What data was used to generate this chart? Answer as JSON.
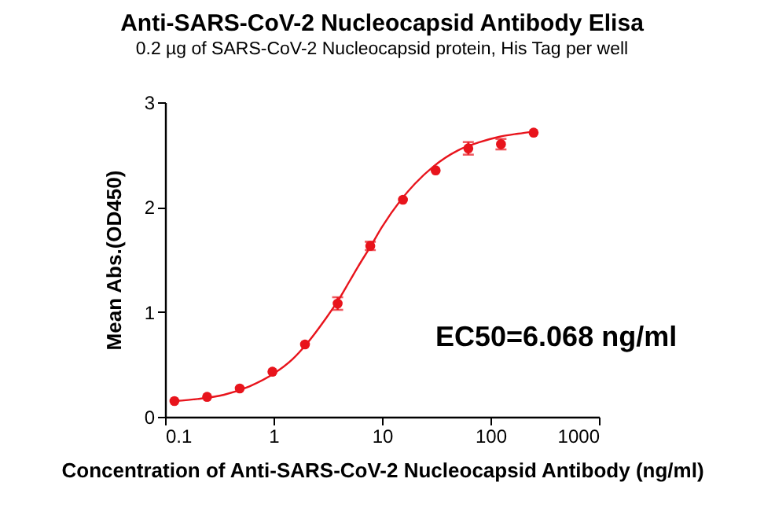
{
  "chart_data": {
    "type": "scatter",
    "title": "Anti-SARS-CoV-2 Nucleocapsid Antibody Elisa",
    "subtitle": "0.2 µg of SARS-CoV-2 Nucleocapsid protein, His Tag per well",
    "xlabel": "Concentration of Anti-SARS-CoV-2 Nucleocapsid Antibody (ng/ml)",
    "ylabel": "Mean Abs.(OD450)",
    "annotations": [
      "EC50=6.068 ng/ml"
    ],
    "log": "x",
    "xlim": [
      0.1,
      1000
    ],
    "xticks": [
      0.1,
      1,
      10,
      100,
      1000
    ],
    "ylim": [
      0,
      3
    ],
    "yticks": [
      0,
      1,
      2,
      3
    ],
    "series": [
      {
        "type": "scatter",
        "marker": "circle",
        "color": "#e8141c",
        "x": [
          0.122,
          0.244,
          0.488,
          0.977,
          1.95,
          3.9,
          7.8,
          15.6,
          31.25,
          62.5,
          125,
          250
        ],
        "values": [
          0.15,
          0.19,
          0.27,
          0.43,
          0.69,
          1.08,
          1.63,
          2.07,
          2.35,
          2.56,
          2.6,
          2.71
        ],
        "errors": [
          null,
          null,
          null,
          null,
          null,
          0.06,
          0.04,
          null,
          null,
          0.06,
          0.05,
          null
        ]
      },
      {
        "type": "line",
        "marker": "none",
        "color": "#e8141c",
        "x": [
          0.122,
          0.2,
          0.35,
          0.6,
          1,
          1.5,
          2,
          3,
          4,
          5,
          6,
          8,
          10,
          15,
          20,
          30,
          50,
          80,
          120,
          180,
          250
        ],
        "values": [
          0.15,
          0.17,
          0.21,
          0.29,
          0.41,
          0.55,
          0.69,
          0.93,
          1.12,
          1.29,
          1.43,
          1.64,
          1.81,
          2.07,
          2.22,
          2.39,
          2.54,
          2.62,
          2.67,
          2.7,
          2.72
        ]
      }
    ]
  }
}
